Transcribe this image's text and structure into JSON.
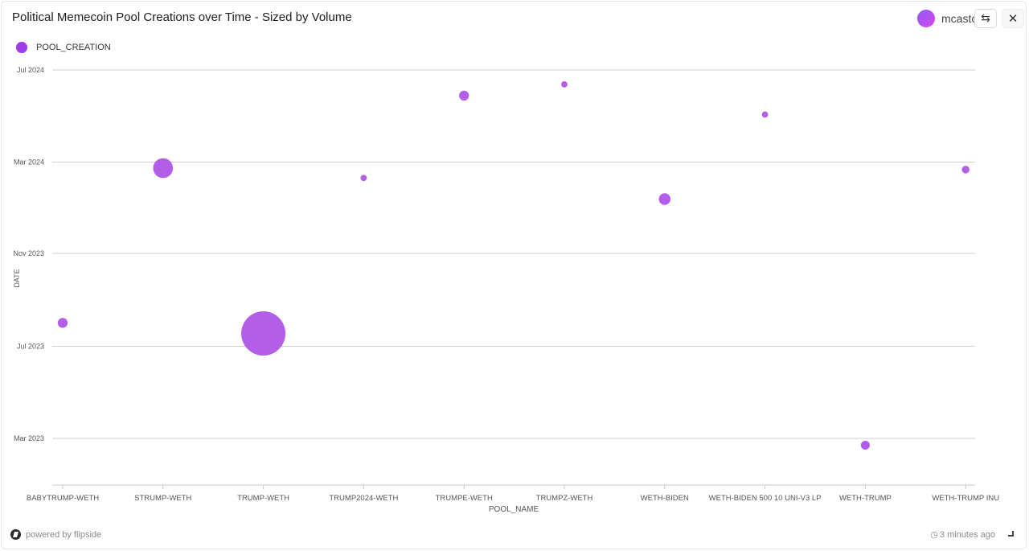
{
  "header": {
    "title": "Political Memecoin Pool Creations over Time - Sized by Volume",
    "user_name": "mcastc",
    "swap_icon": "swap-arrows-icon",
    "close_icon": "close-icon"
  },
  "footer": {
    "powered_by": "powered by flipside",
    "updated": "3 minutes ago"
  },
  "colors": {
    "bubble": "#b35ee8",
    "legend": "#9b3de6",
    "grid": "#cfcfd3",
    "tick_text": "#555555"
  },
  "chart_data": {
    "type": "scatter",
    "subtype": "bubble",
    "legend": [
      "POOL_CREATION"
    ],
    "xlabel": "POOL_NAME",
    "ylabel": "DATE",
    "categories": [
      "BABYTRUMP-WETH",
      "STRUMP-WETH",
      "TRUMP-WETH",
      "TRUMP2024-WETH",
      "TRUMPE-WETH",
      "TRUMPZ-WETH",
      "WETH-BIDEN",
      "WETH-BIDEN 500 10 UNI-V3 LP",
      "WETH-TRUMP",
      "WETH-TRUMP INU"
    ],
    "y_ticks": [
      {
        "date": "2023-03-01",
        "label": "Mar 2023"
      },
      {
        "date": "2023-07-01",
        "label": "Jul 2023"
      },
      {
        "date": "2023-11-01",
        "label": "Nov 2023"
      },
      {
        "date": "2024-03-01",
        "label": "Mar 2024"
      },
      {
        "date": "2024-07-01",
        "label": "Jul 2024"
      }
    ],
    "y_range": [
      "2023-01-01",
      "2024-07-01"
    ],
    "grid": true,
    "legend_position": "top-left",
    "points": [
      {
        "pool": "BABYTRUMP-WETH",
        "date": "2023-08-01",
        "relative_volume": 0.05
      },
      {
        "pool": "STRUMP-WETH",
        "date": "2024-02-22",
        "relative_volume": 0.2
      },
      {
        "pool": "TRUMP-WETH",
        "date": "2023-07-18",
        "relative_volume": 1.0
      },
      {
        "pool": "TRUMP2024-WETH",
        "date": "2024-02-09",
        "relative_volume": 0.02
      },
      {
        "pool": "TRUMPE-WETH",
        "date": "2024-05-28",
        "relative_volume": 0.05
      },
      {
        "pool": "TRUMPZ-WETH",
        "date": "2024-06-12",
        "relative_volume": 0.02
      },
      {
        "pool": "WETH-BIDEN",
        "date": "2024-01-12",
        "relative_volume": 0.07
      },
      {
        "pool": "WETH-BIDEN 500 10 UNI-V3 LP",
        "date": "2024-05-03",
        "relative_volume": 0.02
      },
      {
        "pool": "WETH-TRUMP",
        "date": "2023-02-20",
        "relative_volume": 0.04
      },
      {
        "pool": "WETH-TRUMP INU",
        "date": "2024-02-20",
        "relative_volume": 0.03
      }
    ]
  }
}
